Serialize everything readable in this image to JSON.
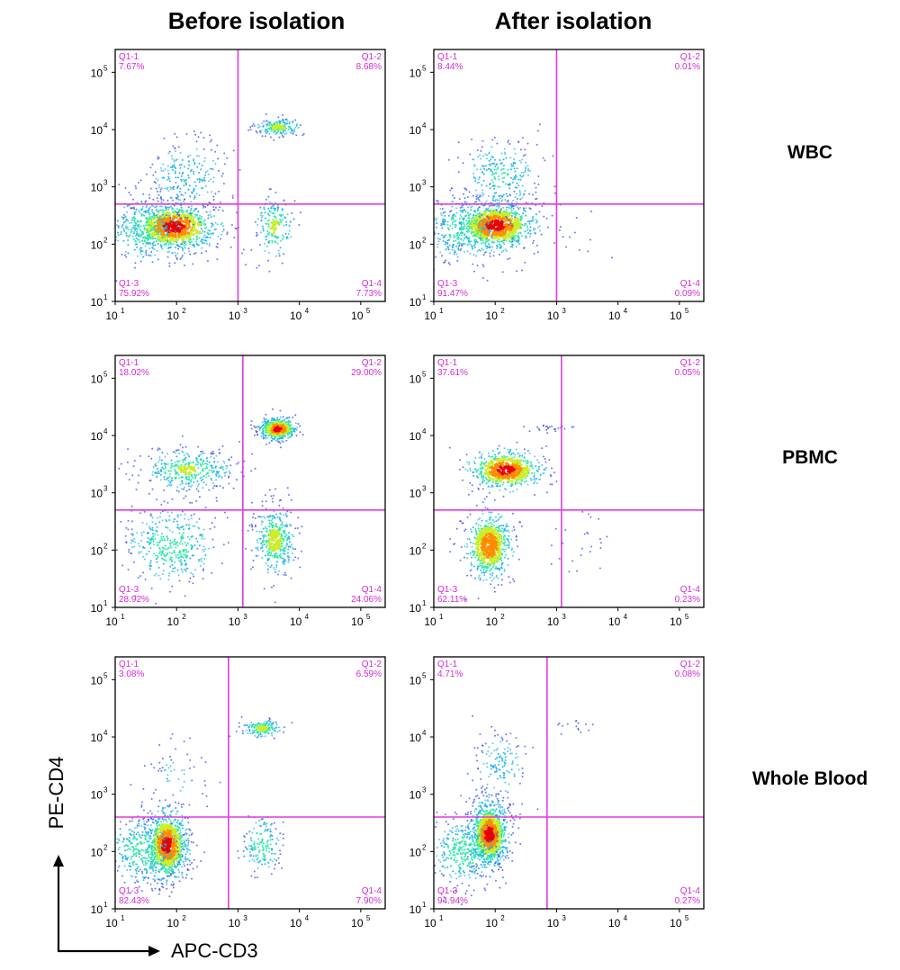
{
  "figure": {
    "column_titles": [
      "Before isolation",
      "After isolation"
    ],
    "row_labels": [
      "WBC",
      "PBMC",
      "Whole Blood"
    ],
    "x_axis_label": "APC-CD3",
    "y_axis_label": "PE-CD4"
  },
  "colors": {
    "gate": "#e03ce0",
    "quadrant_text": "#d42ad4",
    "frame": "#000000",
    "density_scale": [
      "#2a45e6",
      "#1ab4e8",
      "#2ee8a8",
      "#c8ee28",
      "#ff8c00",
      "#e80000"
    ]
  },
  "chart_data": [
    {
      "type": "scatter",
      "title": "WBC — Before isolation",
      "xlabel": "APC-CD3",
      "ylabel": "PE-CD4",
      "xscale": "log",
      "yscale": "log",
      "xlim": [
        10,
        250000
      ],
      "ylim": [
        10,
        250000
      ],
      "x_ticks": [
        "10",
        "10",
        "10",
        "10",
        "10"
      ],
      "x_tick_exp": [
        "1",
        "2",
        "3",
        "4",
        "5"
      ],
      "y_ticks": [
        "10",
        "10",
        "10",
        "10",
        "10"
      ],
      "y_tick_exp": [
        "1",
        "2",
        "3",
        "4",
        "5"
      ],
      "gate": {
        "x": 1000,
        "y": 500
      },
      "quadrants": [
        {
          "id": "Q1-1",
          "pct": "7.67%"
        },
        {
          "id": "Q1-2",
          "pct": "8.68%"
        },
        {
          "id": "Q1-3",
          "pct": "75.92%"
        },
        {
          "id": "Q1-4",
          "pct": "7.73%"
        }
      ],
      "clusters": [
        {
          "cx": 90,
          "cy": 200,
          "sx": 0.38,
          "sy": 0.22,
          "n": 750,
          "peak": 1.0
        },
        {
          "cx": 30,
          "cy": 180,
          "sx": 0.35,
          "sy": 0.3,
          "n": 300,
          "peak": 0.45
        },
        {
          "cx": 150,
          "cy": 1500,
          "sx": 0.35,
          "sy": 0.35,
          "n": 240,
          "peak": 0.3
        },
        {
          "cx": 4500,
          "cy": 11000,
          "sx": 0.18,
          "sy": 0.07,
          "n": 170,
          "peak": 0.6
        },
        {
          "cx": 4000,
          "cy": 200,
          "sx": 0.16,
          "sy": 0.28,
          "n": 170,
          "peak": 0.55
        }
      ]
    },
    {
      "type": "scatter",
      "title": "WBC — After isolation",
      "xlabel": "APC-CD3",
      "ylabel": "PE-CD4",
      "xscale": "log",
      "yscale": "log",
      "xlim": [
        10,
        250000
      ],
      "ylim": [
        10,
        250000
      ],
      "x_ticks": [
        "10",
        "10",
        "10",
        "10",
        "10"
      ],
      "x_tick_exp": [
        "1",
        "2",
        "3",
        "4",
        "5"
      ],
      "y_ticks": [
        "10",
        "10",
        "10",
        "10",
        "10"
      ],
      "y_tick_exp": [
        "1",
        "2",
        "3",
        "4",
        "5"
      ],
      "gate": {
        "x": 1000,
        "y": 500
      },
      "quadrants": [
        {
          "id": "Q1-1",
          "pct": "8.44%"
        },
        {
          "id": "Q1-2",
          "pct": "0.01%"
        },
        {
          "id": "Q1-3",
          "pct": "91.47%"
        },
        {
          "id": "Q1-4",
          "pct": "0.09%"
        }
      ],
      "clusters": [
        {
          "cx": 100,
          "cy": 210,
          "sx": 0.35,
          "sy": 0.22,
          "n": 800,
          "peak": 1.0
        },
        {
          "cx": 30,
          "cy": 180,
          "sx": 0.35,
          "sy": 0.3,
          "n": 320,
          "peak": 0.45
        },
        {
          "cx": 120,
          "cy": 1500,
          "sx": 0.32,
          "sy": 0.35,
          "n": 260,
          "peak": 0.35
        },
        {
          "cx": 2000,
          "cy": 150,
          "sx": 0.35,
          "sy": 0.3,
          "n": 10,
          "peak": 0.05
        }
      ]
    },
    {
      "type": "scatter",
      "title": "PBMC — Before isolation",
      "xlabel": "APC-CD3",
      "ylabel": "PE-CD4",
      "xscale": "log",
      "yscale": "log",
      "xlim": [
        10,
        250000
      ],
      "ylim": [
        10,
        250000
      ],
      "x_ticks": [
        "10",
        "10",
        "10",
        "10",
        "10"
      ],
      "x_tick_exp": [
        "1",
        "2",
        "3",
        "4",
        "5"
      ],
      "y_ticks": [
        "10",
        "10",
        "10",
        "10",
        "10"
      ],
      "y_tick_exp": [
        "1",
        "2",
        "3",
        "4",
        "5"
      ],
      "gate": {
        "x": 1200,
        "y": 500
      },
      "quadrants": [
        {
          "id": "Q1-1",
          "pct": "18.02%"
        },
        {
          "id": "Q1-2",
          "pct": "29.00%"
        },
        {
          "id": "Q1-3",
          "pct": "28.92%"
        },
        {
          "id": "Q1-4",
          "pct": "24.06%"
        }
      ],
      "clusters": [
        {
          "cx": 4500,
          "cy": 13000,
          "sx": 0.16,
          "sy": 0.1,
          "n": 420,
          "peak": 1.0
        },
        {
          "cx": 150,
          "cy": 2500,
          "sx": 0.38,
          "sy": 0.18,
          "n": 380,
          "peak": 0.55
        },
        {
          "cx": 80,
          "cy": 120,
          "sx": 0.38,
          "sy": 0.35,
          "n": 400,
          "peak": 0.45
        },
        {
          "cx": 4000,
          "cy": 150,
          "sx": 0.17,
          "sy": 0.32,
          "n": 380,
          "peak": 0.6
        }
      ]
    },
    {
      "type": "scatter",
      "title": "PBMC — After isolation",
      "xlabel": "APC-CD3",
      "ylabel": "PE-CD4",
      "xscale": "log",
      "yscale": "log",
      "xlim": [
        10,
        250000
      ],
      "ylim": [
        10,
        250000
      ],
      "x_ticks": [
        "10",
        "10",
        "10",
        "10",
        "10"
      ],
      "x_tick_exp": [
        "1",
        "2",
        "3",
        "4",
        "5"
      ],
      "y_ticks": [
        "10",
        "10",
        "10",
        "10",
        "10"
      ],
      "y_tick_exp": [
        "1",
        "2",
        "3",
        "4",
        "5"
      ],
      "gate": {
        "x": 1200,
        "y": 500
      },
      "quadrants": [
        {
          "id": "Q1-1",
          "pct": "37.61%"
        },
        {
          "id": "Q1-2",
          "pct": "0.05%"
        },
        {
          "id": "Q1-3",
          "pct": "62.11%"
        },
        {
          "id": "Q1-4",
          "pct": "0.23%"
        }
      ],
      "clusters": [
        {
          "cx": 150,
          "cy": 2500,
          "sx": 0.32,
          "sy": 0.18,
          "n": 500,
          "peak": 1.0
        },
        {
          "cx": 80,
          "cy": 120,
          "sx": 0.2,
          "sy": 0.3,
          "n": 550,
          "peak": 0.9
        },
        {
          "cx": 800,
          "cy": 13000,
          "sx": 0.2,
          "sy": 0.04,
          "n": 25,
          "peak": 0.1
        },
        {
          "cx": 2500,
          "cy": 130,
          "sx": 0.3,
          "sy": 0.3,
          "n": 25,
          "peak": 0.1
        }
      ]
    },
    {
      "type": "scatter",
      "title": "Whole Blood — Before isolation",
      "xlabel": "APC-CD3",
      "ylabel": "PE-CD4",
      "xscale": "log",
      "yscale": "log",
      "xlim": [
        10,
        250000
      ],
      "ylim": [
        10,
        250000
      ],
      "x_ticks": [
        "10",
        "10",
        "10",
        "10",
        "10"
      ],
      "x_tick_exp": [
        "1",
        "2",
        "3",
        "4",
        "5"
      ],
      "y_ticks": [
        "10",
        "10",
        "10",
        "10",
        "10"
      ],
      "y_tick_exp": [
        "1",
        "2",
        "3",
        "4",
        "5"
      ],
      "gate": {
        "x": 700,
        "y": 400
      },
      "quadrants": [
        {
          "id": "Q1-1",
          "pct": "3.08%"
        },
        {
          "id": "Q1-2",
          "pct": "6.59%"
        },
        {
          "id": "Q1-3",
          "pct": "82.43%"
        },
        {
          "id": "Q1-4",
          "pct": "7.90%"
        }
      ],
      "clusters": [
        {
          "cx": 70,
          "cy": 130,
          "sx": 0.18,
          "sy": 0.32,
          "n": 750,
          "peak": 1.0
        },
        {
          "cx": 30,
          "cy": 100,
          "sx": 0.3,
          "sy": 0.3,
          "n": 350,
          "peak": 0.5
        },
        {
          "cx": 2500,
          "cy": 14000,
          "sx": 0.16,
          "sy": 0.08,
          "n": 140,
          "peak": 0.6
        },
        {
          "cx": 2500,
          "cy": 130,
          "sx": 0.15,
          "sy": 0.25,
          "n": 160,
          "peak": 0.5
        },
        {
          "cx": 100,
          "cy": 2000,
          "sx": 0.25,
          "sy": 0.35,
          "n": 60,
          "peak": 0.15
        }
      ]
    },
    {
      "type": "scatter",
      "title": "Whole Blood — After isolation",
      "xlabel": "APC-CD3",
      "ylabel": "PE-CD4",
      "xscale": "log",
      "yscale": "log",
      "xlim": [
        10,
        250000
      ],
      "ylim": [
        10,
        250000
      ],
      "x_ticks": [
        "10",
        "10",
        "10",
        "10",
        "10"
      ],
      "x_tick_exp": [
        "1",
        "2",
        "3",
        "4",
        "5"
      ],
      "y_ticks": [
        "10",
        "10",
        "10",
        "10",
        "10"
      ],
      "y_tick_exp": [
        "1",
        "2",
        "3",
        "4",
        "5"
      ],
      "gate": {
        "x": 700,
        "y": 400
      },
      "quadrants": [
        {
          "id": "Q1-1",
          "pct": "4.71%"
        },
        {
          "id": "Q1-2",
          "pct": "0.08%"
        },
        {
          "id": "Q1-3",
          "pct": "94.94%"
        },
        {
          "id": "Q1-4",
          "pct": "0.27%"
        }
      ],
      "clusters": [
        {
          "cx": 80,
          "cy": 200,
          "sx": 0.16,
          "sy": 0.3,
          "n": 850,
          "peak": 1.0
        },
        {
          "cx": 30,
          "cy": 100,
          "sx": 0.3,
          "sy": 0.3,
          "n": 380,
          "peak": 0.45
        },
        {
          "cx": 120,
          "cy": 3000,
          "sx": 0.22,
          "sy": 0.32,
          "n": 140,
          "peak": 0.3
        },
        {
          "cx": 2500,
          "cy": 15000,
          "sx": 0.22,
          "sy": 0.06,
          "n": 15,
          "peak": 0.05
        }
      ]
    }
  ]
}
